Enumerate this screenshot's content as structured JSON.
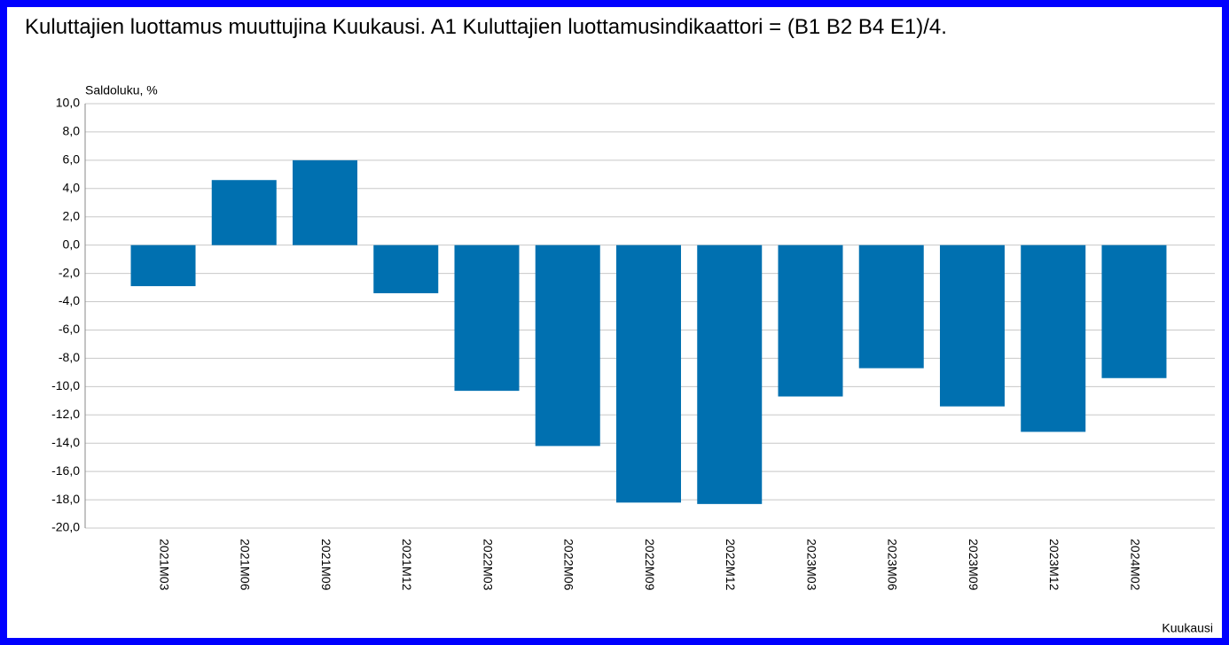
{
  "chart_data": {
    "type": "bar",
    "title": "Kuluttajien luottamus muuttujina Kuukausi. A1 Kuluttajien luottamusindikaattori = (B1 B2 B4 E1)/4.",
    "y_axis_label": "Saldoluku, %",
    "x_axis_label": "Kuukausi",
    "categories": [
      "2021M03",
      "2021M06",
      "2021M09",
      "2021M12",
      "2022M03",
      "2022M06",
      "2022M09",
      "2022M12",
      "2023M03",
      "2023M06",
      "2023M09",
      "2023M12",
      "2024M02"
    ],
    "values": [
      -2.9,
      4.6,
      6.0,
      -3.4,
      -10.3,
      -14.2,
      -18.2,
      -18.3,
      -10.7,
      -8.7,
      -11.4,
      -13.2,
      -9.4
    ],
    "color": "#0070b0",
    "ylim": [
      -20,
      10
    ],
    "yticks": [
      {
        "value": -20,
        "label": "-20,0"
      },
      {
        "value": -18,
        "label": "-18,0"
      },
      {
        "value": -16,
        "label": "-16,0"
      },
      {
        "value": -14,
        "label": "-14,0"
      },
      {
        "value": -12,
        "label": "-12,0"
      },
      {
        "value": -10,
        "label": "-10,0"
      },
      {
        "value": -8,
        "label": "-8,0"
      },
      {
        "value": -6,
        "label": "-6,0"
      },
      {
        "value": -4,
        "label": "-4,0"
      },
      {
        "value": -2,
        "label": "-2,0"
      },
      {
        "value": 0,
        "label": "0,0"
      },
      {
        "value": 2,
        "label": "2,0"
      },
      {
        "value": 4,
        "label": "4,0"
      },
      {
        "value": 6,
        "label": "6,0"
      },
      {
        "value": 8,
        "label": "8,0"
      },
      {
        "value": 10,
        "label": "10,0"
      }
    ],
    "grid": true
  }
}
